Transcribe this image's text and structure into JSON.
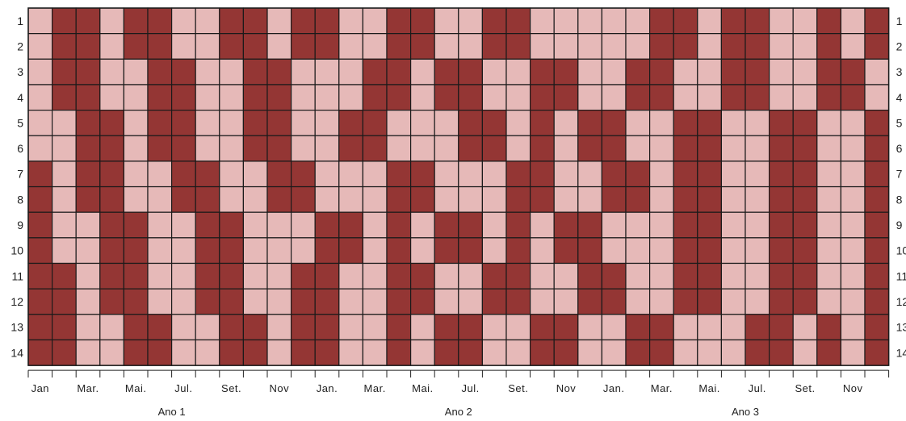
{
  "chart_data": {
    "type": "heatmap",
    "title": "",
    "xlabel": "",
    "ylabel": "",
    "colors": {
      "on": "#943634",
      "off": "#E6B9B8",
      "grid": "#1a1a1a"
    },
    "rows": [
      "1",
      "2",
      "3",
      "4",
      "5",
      "6",
      "7",
      "8",
      "9",
      "10",
      "11",
      "12",
      "13",
      "14"
    ],
    "month_labels": [
      "Jan",
      "",
      "Mar.",
      "",
      "Mai.",
      "",
      "Jul.",
      "",
      "Set.",
      "",
      "Nov",
      "",
      "Jan.",
      "",
      "Mar.",
      "",
      "Mai.",
      "",
      "Jul.",
      "",
      "Set.",
      "",
      "Nov",
      "",
      "Jan.",
      "",
      "Mar.",
      "",
      "Mai.",
      "",
      "Jul.",
      "",
      "Set.",
      "",
      "Nov",
      ""
    ],
    "year_labels": [
      "Ano 1",
      "Ano 2",
      "Ano 3"
    ],
    "cells": [
      "011011001101100110011000001101100101",
      "011011001101100110011000001101100101",
      "011001100110001101100110011001100110",
      "011001100110001101100110011001100110",
      "001101100110011000110101100110011001",
      "001101100110011000110101100110011001",
      "101100110011000110001100110110011001",
      "101100110011000110001100110110011001",
      "100110011000110101101011000110011001",
      "100110011000110101101011000110011001",
      "110110011001100110011001100110011001",
      "110110011001100110011001100110011001",
      "110011001101100101100110011000110101",
      "110011001101100101100110011000110101"
    ]
  }
}
